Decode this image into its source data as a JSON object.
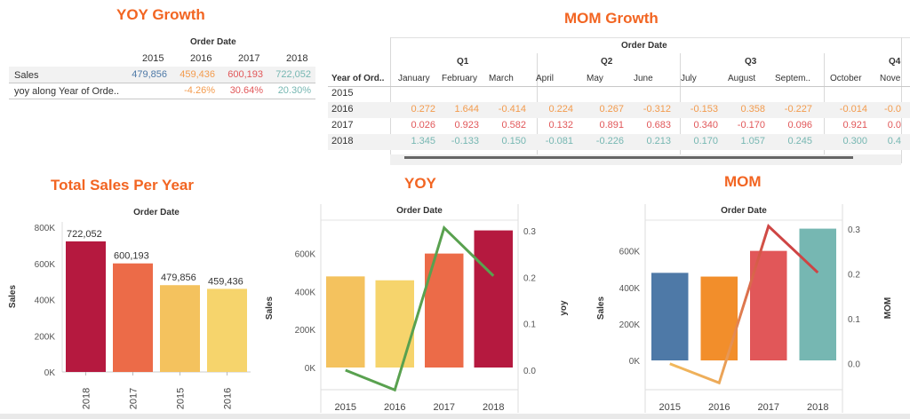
{
  "yoy_table": {
    "title": "YOY Growth",
    "header": "Order Date",
    "years": [
      "2015",
      "2016",
      "2017",
      "2018"
    ],
    "rows": [
      {
        "label": "Sales",
        "values": [
          "479,856",
          "459,436",
          "600,193",
          "722,052"
        ]
      },
      {
        "label": "yoy along Year of Orde..",
        "values": [
          "",
          "-4.26%",
          "30.64%",
          "20.30%"
        ]
      }
    ]
  },
  "mom_table": {
    "title": "MOM Growth",
    "header": "Order Date",
    "row_header": "Year of Ord..",
    "quarters": [
      "Q1",
      "Q2",
      "Q3",
      "Q4"
    ],
    "months": [
      "January",
      "February",
      "March",
      "April",
      "May",
      "June",
      "July",
      "August",
      "Septem..",
      "October",
      "Nove"
    ],
    "rows": [
      {
        "year": "2015",
        "values": [
          "",
          "",
          "",
          "",
          "",
          "",
          "",
          "",
          "",
          "",
          ""
        ]
      },
      {
        "year": "2016",
        "values": [
          "0.272",
          "1.644",
          "-0.414",
          "0.224",
          "0.267",
          "-0.312",
          "-0.153",
          "0.358",
          "-0.227",
          "-0.014",
          "-0.0"
        ]
      },
      {
        "year": "2017",
        "values": [
          "0.026",
          "0.923",
          "0.582",
          "0.132",
          "0.891",
          "0.683",
          "0.340",
          "-0.170",
          "0.096",
          "0.921",
          "0.0"
        ]
      },
      {
        "year": "2018",
        "values": [
          "1.345",
          "-0.133",
          "0.150",
          "-0.081",
          "-0.226",
          "0.213",
          "0.170",
          "1.057",
          "0.245",
          "0.300",
          "0.4"
        ]
      }
    ],
    "row_colors": [
      "#333333",
      "#f39b4d",
      "#e15759",
      "#76b7b2"
    ]
  },
  "chart_titles": {
    "total": "Total Sales Per Year",
    "yoy": "YOY",
    "mom": "MOM"
  },
  "chart_data": [
    {
      "type": "bar",
      "title": "Total Sales Per Year",
      "header": "Order Date",
      "categories": [
        "2018",
        "2017",
        "2015",
        "2016"
      ],
      "values": [
        722052,
        600193,
        479856,
        459436
      ],
      "data_labels": [
        "722,052",
        "600,193",
        "479,856",
        "459,436"
      ],
      "colors": [
        "#b5193f",
        "#ec6b48",
        "#f4c25e",
        "#f6d46c"
      ],
      "ylabel": "Sales",
      "yticks": [
        "800K",
        "600K",
        "400K",
        "200K",
        "0K"
      ],
      "ylim": [
        0,
        800000
      ]
    },
    {
      "type": "bar",
      "title": "YOY",
      "header": "Order Date",
      "categories": [
        "2015",
        "2016",
        "2017",
        "2018"
      ],
      "values": [
        479856,
        459436,
        600193,
        722052
      ],
      "colors": [
        "#f4c25e",
        "#f6d46c",
        "#ec6b48",
        "#b5193f"
      ],
      "ylabel": "Sales",
      "ylabel2": "yoy",
      "yticks": [
        "600K",
        "400K",
        "200K",
        "0K"
      ],
      "ylim": [
        0,
        720000
      ],
      "yticks2": [
        "0.3",
        "0.2",
        "0.1",
        "0.0"
      ],
      "ylim2": [
        -0.044,
        0.3
      ],
      "line": {
        "name": "yoy",
        "values": [
          0.0,
          -0.0426,
          0.3064,
          0.203
        ],
        "color": "#59a14f"
      }
    },
    {
      "type": "bar",
      "title": "MOM",
      "header": "Order Date",
      "categories": [
        "2015",
        "2016",
        "2017",
        "2018"
      ],
      "values": [
        479856,
        459436,
        600193,
        722052
      ],
      "colors": [
        "#4e79a7",
        "#f28e2b",
        "#e15759",
        "#76b7b2"
      ],
      "ylabel": "Sales",
      "ylabel2": "MOM",
      "yticks": [
        "600K",
        "400K",
        "200K",
        "0K"
      ],
      "ylim": [
        0,
        720000
      ],
      "yticks2": [
        "0.3",
        "0.2",
        "0.1",
        "0.0"
      ],
      "ylim2": [
        -0.044,
        0.3
      ],
      "line": {
        "name": "MOM",
        "values": [
          0.0,
          -0.0426,
          0.3064,
          0.203
        ],
        "color_start": "#f4c25e",
        "color_end": "#c72d3f"
      }
    }
  ]
}
